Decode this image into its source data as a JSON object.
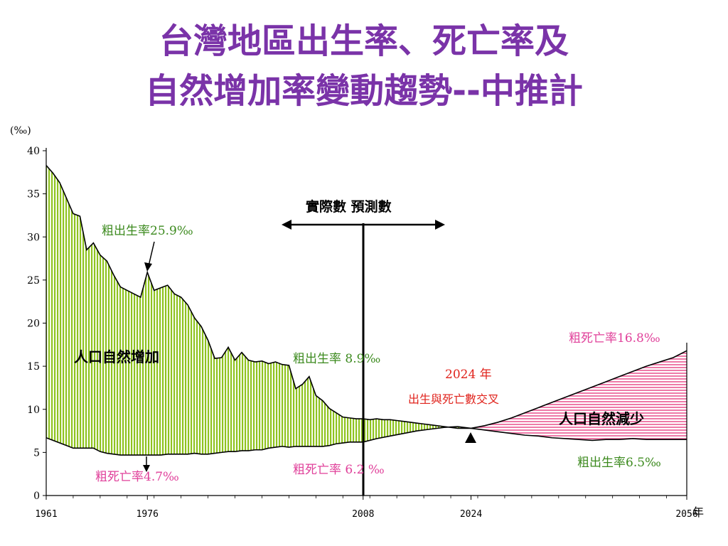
{
  "title_line1": "台灣地區出生率、死亡率及",
  "title_line2": "自然增加率變動趨勢--中推計",
  "chart_data": {
    "type": "area",
    "y_unit": "(‰)",
    "x_unit": "年",
    "ylim": [
      0,
      40
    ],
    "y_ticks": [
      "0",
      "5",
      "10",
      "15",
      "20",
      "25",
      "30",
      "35",
      "40"
    ],
    "x_tick_labels": [
      "1961",
      "1976",
      "2008",
      "2024",
      "2056"
    ],
    "xlim": [
      1961,
      2056
    ],
    "series": [
      {
        "name": "粗出生率",
        "color": "#8fc31f",
        "points": [
          [
            1961,
            38.3
          ],
          [
            1962,
            37.4
          ],
          [
            1963,
            36.3
          ],
          [
            1964,
            34.5
          ],
          [
            1965,
            32.7
          ],
          [
            1966,
            32.4
          ],
          [
            1967,
            28.5
          ],
          [
            1968,
            29.3
          ],
          [
            1969,
            27.9
          ],
          [
            1970,
            27.2
          ],
          [
            1971,
            25.6
          ],
          [
            1972,
            24.2
          ],
          [
            1973,
            23.8
          ],
          [
            1974,
            23.4
          ],
          [
            1975,
            23.0
          ],
          [
            1976,
            25.9
          ],
          [
            1977,
            23.8
          ],
          [
            1978,
            24.1
          ],
          [
            1979,
            24.4
          ],
          [
            1980,
            23.4
          ],
          [
            1981,
            23.0
          ],
          [
            1982,
            22.1
          ],
          [
            1983,
            20.6
          ],
          [
            1984,
            19.6
          ],
          [
            1985,
            18.0
          ],
          [
            1986,
            15.9
          ],
          [
            1987,
            16.0
          ],
          [
            1988,
            17.2
          ],
          [
            1989,
            15.7
          ],
          [
            1990,
            16.6
          ],
          [
            1991,
            15.7
          ],
          [
            1992,
            15.5
          ],
          [
            1993,
            15.6
          ],
          [
            1994,
            15.3
          ],
          [
            1995,
            15.5
          ],
          [
            1996,
            15.2
          ],
          [
            1997,
            15.1
          ],
          [
            1998,
            12.4
          ],
          [
            1999,
            12.9
          ],
          [
            2000,
            13.8
          ],
          [
            2001,
            11.6
          ],
          [
            2002,
            11.0
          ],
          [
            2003,
            10.1
          ],
          [
            2004,
            9.6
          ],
          [
            2005,
            9.1
          ],
          [
            2006,
            9.0
          ],
          [
            2007,
            8.9
          ],
          [
            2008,
            8.9
          ],
          [
            2009,
            8.8
          ],
          [
            2010,
            8.9
          ],
          [
            2011,
            8.8
          ],
          [
            2012,
            8.8
          ],
          [
            2013,
            8.7
          ],
          [
            2014,
            8.6
          ],
          [
            2015,
            8.5
          ],
          [
            2016,
            8.4
          ],
          [
            2017,
            8.3
          ],
          [
            2018,
            8.2
          ],
          [
            2019,
            8.1
          ],
          [
            2020,
            8.0
          ],
          [
            2021,
            7.9
          ],
          [
            2022,
            7.8
          ],
          [
            2023,
            7.8
          ],
          [
            2024,
            7.8
          ],
          [
            2026,
            7.6
          ],
          [
            2028,
            7.4
          ],
          [
            2030,
            7.2
          ],
          [
            2032,
            7.0
          ],
          [
            2034,
            6.9
          ],
          [
            2036,
            6.7
          ],
          [
            2038,
            6.6
          ],
          [
            2040,
            6.5
          ],
          [
            2042,
            6.4
          ],
          [
            2044,
            6.5
          ],
          [
            2046,
            6.5
          ],
          [
            2048,
            6.6
          ],
          [
            2050,
            6.5
          ],
          [
            2052,
            6.5
          ],
          [
            2054,
            6.5
          ],
          [
            2056,
            6.5
          ]
        ]
      },
      {
        "name": "粗死亡率",
        "color": "#e8679c",
        "points": [
          [
            1961,
            6.7
          ],
          [
            1962,
            6.4
          ],
          [
            1963,
            6.1
          ],
          [
            1964,
            5.8
          ],
          [
            1965,
            5.5
          ],
          [
            1966,
            5.5
          ],
          [
            1967,
            5.5
          ],
          [
            1968,
            5.5
          ],
          [
            1969,
            5.1
          ],
          [
            1970,
            4.9
          ],
          [
            1971,
            4.8
          ],
          [
            1972,
            4.7
          ],
          [
            1973,
            4.7
          ],
          [
            1974,
            4.7
          ],
          [
            1975,
            4.7
          ],
          [
            1976,
            4.7
          ],
          [
            1977,
            4.7
          ],
          [
            1978,
            4.7
          ],
          [
            1979,
            4.8
          ],
          [
            1980,
            4.8
          ],
          [
            1981,
            4.8
          ],
          [
            1982,
            4.8
          ],
          [
            1983,
            4.9
          ],
          [
            1984,
            4.8
          ],
          [
            1985,
            4.8
          ],
          [
            1986,
            4.9
          ],
          [
            1987,
            5.0
          ],
          [
            1988,
            5.1
          ],
          [
            1989,
            5.1
          ],
          [
            1990,
            5.2
          ],
          [
            1991,
            5.2
          ],
          [
            1992,
            5.3
          ],
          [
            1993,
            5.3
          ],
          [
            1994,
            5.5
          ],
          [
            1995,
            5.6
          ],
          [
            1996,
            5.7
          ],
          [
            1997,
            5.6
          ],
          [
            1998,
            5.7
          ],
          [
            1999,
            5.7
          ],
          [
            2000,
            5.7
          ],
          [
            2001,
            5.7
          ],
          [
            2002,
            5.7
          ],
          [
            2003,
            5.8
          ],
          [
            2004,
            6.0
          ],
          [
            2005,
            6.1
          ],
          [
            2006,
            6.2
          ],
          [
            2007,
            6.2
          ],
          [
            2008,
            6.2
          ],
          [
            2010,
            6.6
          ],
          [
            2012,
            6.9
          ],
          [
            2014,
            7.2
          ],
          [
            2016,
            7.5
          ],
          [
            2018,
            7.7
          ],
          [
            2020,
            7.9
          ],
          [
            2022,
            8.0
          ],
          [
            2024,
            7.8
          ],
          [
            2026,
            8.1
          ],
          [
            2028,
            8.5
          ],
          [
            2030,
            9.0
          ],
          [
            2032,
            9.6
          ],
          [
            2034,
            10.2
          ],
          [
            2036,
            10.8
          ],
          [
            2038,
            11.4
          ],
          [
            2040,
            12.0
          ],
          [
            2042,
            12.6
          ],
          [
            2044,
            13.2
          ],
          [
            2046,
            13.8
          ],
          [
            2048,
            14.4
          ],
          [
            2050,
            15.0
          ],
          [
            2052,
            15.5
          ],
          [
            2054,
            16.0
          ],
          [
            2056,
            16.8
          ]
        ]
      }
    ],
    "annotations": {
      "birth_1976": "粗出生率25.9‰",
      "death_1976": "粗死亡率4.7‰",
      "natural_increase": "人口自然增加",
      "birth_2008": "粗出生率 8.9‰",
      "death_2008": "粗死亡率 6.2 ‰",
      "actual_vs_projection": "實際數 預測數",
      "crossover_year": "2024 年",
      "crossover_text": "出生與死亡數交叉",
      "death_2056": "粗死亡率16.8‰",
      "natural_decrease": "人口自然減少",
      "birth_2056": "粗出生率6.5‰"
    }
  }
}
